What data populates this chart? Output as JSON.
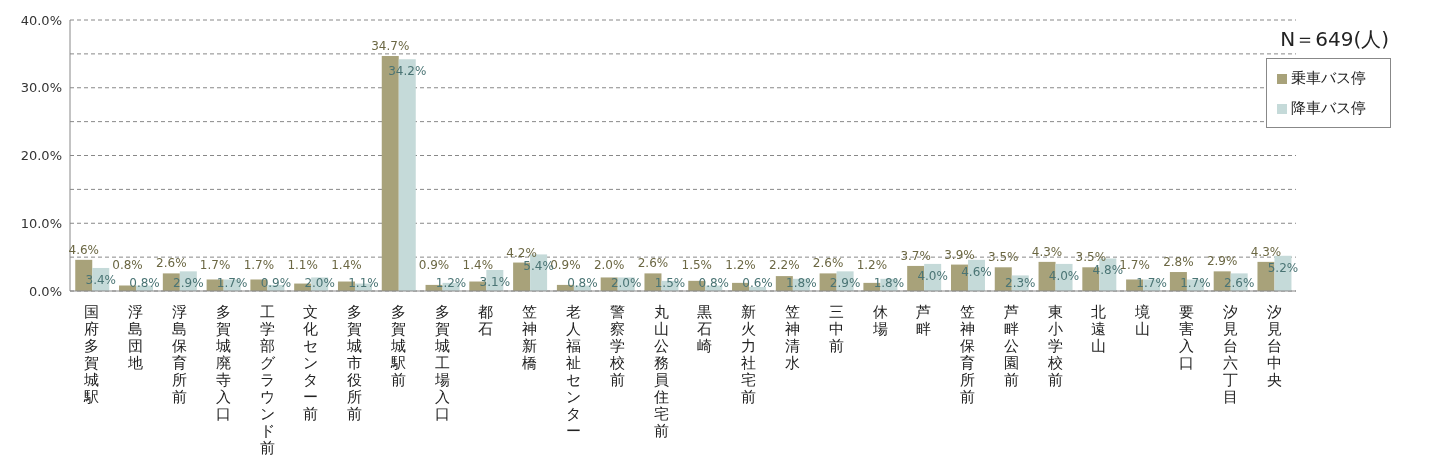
{
  "chart_data": {
    "type": "bar",
    "categories": [
      "国府多賀城駅",
      "浮島団地",
      "浮島保育所前",
      "多賀城廃寺入口",
      "工学部グラウンド前",
      "文化センター前",
      "多賀城市役所前",
      "多賀城駅前",
      "多賀城工場入口",
      "都石",
      "笠神新橋",
      "老人福祉センター",
      "警察学校前",
      "丸山公務員住宅前",
      "黒石崎",
      "新火力社宅前",
      "笠神清水",
      "三中前",
      "休場",
      "芦畔",
      "笠神保育所前",
      "芦畔公園前",
      "東小学校前",
      "北遠山",
      "境山",
      "要害入口",
      "汐見台六丁目",
      "汐見台中央"
    ],
    "series": [
      {
        "name": "乗車バス停",
        "color": "#a8a27a",
        "values": [
          4.6,
          0.8,
          2.6,
          1.7,
          1.7,
          1.1,
          1.4,
          34.7,
          0.9,
          1.4,
          4.2,
          0.9,
          2.0,
          2.6,
          1.5,
          1.2,
          2.2,
          2.6,
          1.2,
          3.7,
          3.9,
          3.5,
          4.3,
          3.5,
          1.7,
          2.8,
          2.9,
          4.3
        ],
        "value_labels": [
          "4.6%",
          "0.8%",
          "2.6%",
          "1.7%",
          "1.7%",
          "1.1%",
          "1.4%",
          "34.7%",
          "0.9%",
          "1.4%",
          "4.2%",
          "0.9%",
          "2.0%",
          "2.6%",
          "1.5%",
          "1.2%",
          "2.2%",
          "2.6%",
          "1.2%",
          "3.7%",
          "3.9%",
          "3.5%",
          "4.3%",
          "3.5%",
          "1.7%",
          "2.8%",
          "2.9%",
          "4.3%"
        ]
      },
      {
        "name": "降車バス停",
        "color": "#c5dad9",
        "values": [
          3.4,
          0.8,
          2.9,
          1.7,
          0.9,
          2.0,
          1.1,
          34.2,
          1.2,
          3.1,
          5.4,
          0.8,
          2.0,
          1.5,
          0.8,
          0.6,
          1.8,
          2.9,
          1.8,
          4.0,
          4.6,
          2.3,
          4.0,
          4.8,
          1.7,
          1.7,
          2.6,
          5.2
        ],
        "value_labels": [
          "3.4%",
          "0.8%",
          "2.9%",
          "1.7%",
          "0.9%",
          "2.0%",
          "1.1%",
          "34.2%",
          "1.2%",
          "3.1%",
          "5.4%",
          "0.8%",
          "2.0%",
          "1.5%",
          "0.8%",
          "0.6%",
          "1.8%",
          "2.9%",
          "1.8%",
          "4.0%",
          "4.6%",
          "2.3%",
          "4.0%",
          "4.8%",
          "1.7%",
          "1.7%",
          "2.6%",
          "5.2%"
        ]
      }
    ],
    "ylim": [
      0,
      40
    ],
    "yticks": [
      {
        "value": 0,
        "label": "0.0%"
      },
      {
        "value": 5,
        "label": null
      },
      {
        "value": 10,
        "label": "10.0%"
      },
      {
        "value": 15,
        "label": null
      },
      {
        "value": 20,
        "label": "20.0%"
      },
      {
        "value": 25,
        "label": null
      },
      {
        "value": 30,
        "label": "30.0%"
      },
      {
        "value": 35,
        "label": null
      },
      {
        "value": 40,
        "label": "40.0%"
      }
    ],
    "grid": "y",
    "legend": "top right",
    "annotations": [
      "N＝649(人)"
    ]
  }
}
